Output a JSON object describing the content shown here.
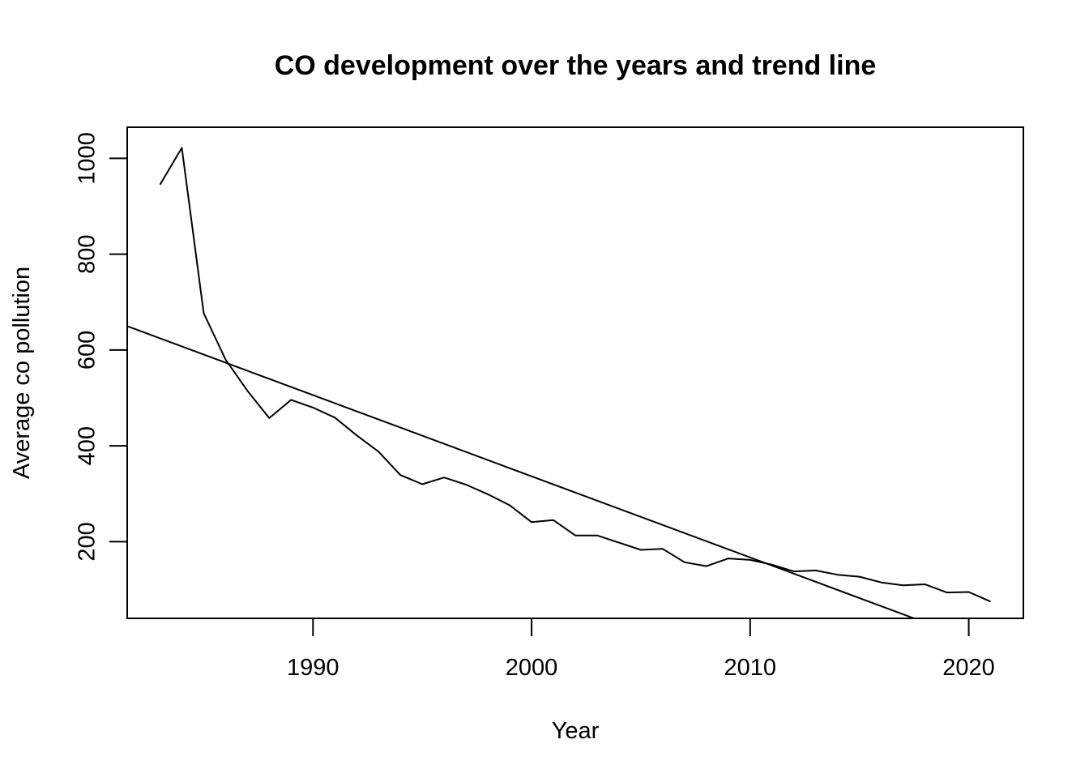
{
  "chart_data": {
    "type": "line",
    "title": "CO development over the years and trend line",
    "xlabel": "Year",
    "ylabel": "Average co pollution",
    "xlim": [
      1981.5,
      2022.5
    ],
    "ylim": [
      40,
      1065
    ],
    "x_ticks": [
      1990,
      2000,
      2010,
      2020
    ],
    "y_ticks": [
      200,
      400,
      600,
      800,
      1000
    ],
    "grid": false,
    "legend": "none",
    "colors": {
      "line": "#000000",
      "axis": "#000000",
      "background": "#ffffff"
    },
    "series": [
      {
        "values": [
          [
            1983,
            945
          ],
          [
            1984,
            1022
          ],
          [
            1985,
            677
          ],
          [
            1986,
            580
          ],
          [
            1987,
            515
          ],
          [
            1988,
            458
          ],
          [
            1989,
            496
          ],
          [
            1990,
            480
          ],
          [
            1991,
            459
          ],
          [
            1992,
            422
          ],
          [
            1993,
            388
          ],
          [
            1994,
            339
          ],
          [
            1995,
            320
          ],
          [
            1996,
            334
          ],
          [
            1997,
            319
          ],
          [
            1998,
            299
          ],
          [
            1999,
            276
          ],
          [
            2000,
            241
          ],
          [
            2001,
            245
          ],
          [
            2002,
            213
          ],
          [
            2003,
            213
          ],
          [
            2004,
            198
          ],
          [
            2005,
            183
          ],
          [
            2006,
            185
          ],
          [
            2007,
            157
          ],
          [
            2008,
            149
          ],
          [
            2009,
            165
          ],
          [
            2010,
            162
          ],
          [
            2011,
            152
          ],
          [
            2012,
            138
          ],
          [
            2013,
            140
          ],
          [
            2014,
            131
          ],
          [
            2015,
            127
          ],
          [
            2016,
            115
          ],
          [
            2017,
            109
          ],
          [
            2018,
            111
          ],
          [
            2019,
            94
          ],
          [
            2020,
            95
          ],
          [
            2021,
            75
          ]
        ]
      },
      {
        "values": [
          [
            1981.5,
            650
          ],
          [
            2017.5,
            40
          ]
        ]
      }
    ]
  }
}
